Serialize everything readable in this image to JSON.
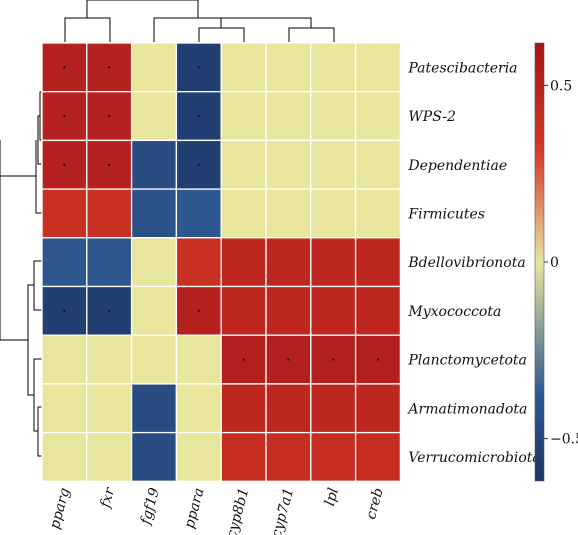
{
  "chart_data": {
    "type": "heatmap",
    "title": "",
    "rows": [
      "Patescibacteria",
      "WPS-2",
      "Dependentiae",
      "Firmicutes",
      "Bdellovibrionota",
      "Myxococcota",
      "Planctomycetota",
      "Armatimonadota",
      "Verrucomicrobiota"
    ],
    "columns": [
      "pparg",
      "fxr",
      "fgf19",
      "ppara",
      "cyp8b1",
      "cyp7a1",
      "lpl",
      "creb"
    ],
    "values": [
      [
        0.52,
        0.52,
        0.0,
        -0.55,
        0.0,
        0.0,
        0.0,
        0.0
      ],
      [
        0.52,
        0.52,
        0.0,
        -0.55,
        0.0,
        0.0,
        0.0,
        0.0
      ],
      [
        0.52,
        0.52,
        -0.45,
        -0.55,
        0.0,
        0.0,
        0.0,
        0.0
      ],
      [
        0.4,
        0.4,
        -0.42,
        -0.38,
        0.0,
        0.0,
        0.0,
        0.0
      ],
      [
        -0.38,
        -0.38,
        0.0,
        0.4,
        0.47,
        0.47,
        0.47,
        0.47
      ],
      [
        -0.55,
        -0.55,
        0.0,
        0.52,
        0.47,
        0.47,
        0.47,
        0.47
      ],
      [
        0.0,
        0.0,
        0.0,
        0.0,
        0.53,
        0.53,
        0.53,
        0.53
      ],
      [
        0.0,
        0.0,
        -0.45,
        0.0,
        0.47,
        0.47,
        0.47,
        0.47
      ],
      [
        0.0,
        0.0,
        -0.45,
        0.0,
        0.42,
        0.42,
        0.42,
        0.42
      ]
    ],
    "significant": [
      [
        0,
        0
      ],
      [
        0,
        1
      ],
      [
        0,
        3
      ],
      [
        1,
        0
      ],
      [
        1,
        1
      ],
      [
        1,
        3
      ],
      [
        2,
        0
      ],
      [
        2,
        1
      ],
      [
        2,
        3
      ],
      [
        5,
        0
      ],
      [
        5,
        1
      ],
      [
        5,
        3
      ],
      [
        6,
        4
      ],
      [
        6,
        5
      ],
      [
        6,
        6
      ],
      [
        6,
        7
      ]
    ],
    "colorbar": {
      "min": -0.62,
      "max": 0.62,
      "ticks": [
        0.5,
        0,
        -0.5
      ],
      "tick_labels": [
        "0.5",
        "0",
        "−0.5"
      ],
      "colors": [
        "#1b3566",
        "#e8e69c",
        "#a5141a"
      ]
    },
    "legend": "right",
    "grid": false,
    "column_dendrogram": true,
    "row_dendrogram": true
  }
}
